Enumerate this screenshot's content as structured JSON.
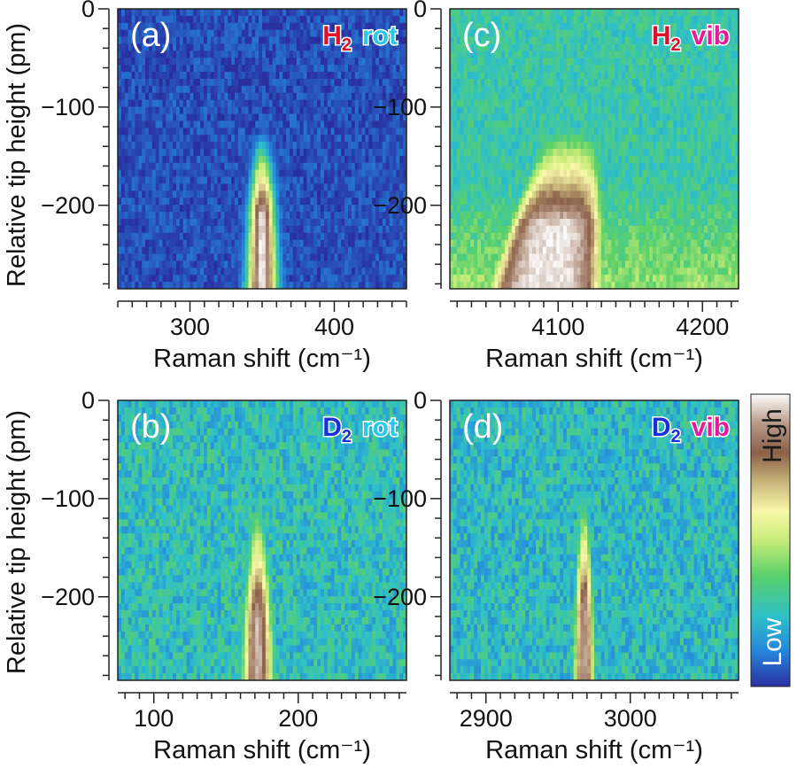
{
  "figure": {
    "shared_ylabel": "Relative tip height (pm)",
    "shared_xlabel": "Raman shift (cm⁻¹)"
  },
  "colors": {
    "species_H": "#e0102a",
    "species_D": "#1a2fd8",
    "label_rot": "#28c8e8",
    "label_vib": "#e8189a",
    "colormap": [
      "#2a2fa0",
      "#2585dc",
      "#2fc0c8",
      "#5ad06a",
      "#c8ec78",
      "#f8f8a8",
      "#c8b47a",
      "#8a6048",
      "#b89a88",
      "#ffffff"
    ]
  },
  "colorbar": {
    "high_label": "High",
    "low_label": "Low"
  },
  "chart_data": [
    {
      "type": "heatmap",
      "id": "a",
      "panel_label": "(a)",
      "species_base": "H",
      "species_sub": "2",
      "mode": "rot",
      "xlabel": "Raman shift (cm⁻¹)",
      "ylabel": "Relative tip height (pm)",
      "xlim": [
        250,
        450
      ],
      "ylim": [
        -285,
        0
      ],
      "xticks": [
        300,
        400
      ],
      "yticks": [
        0,
        -100,
        -200
      ],
      "feature": {
        "peak_center": 350,
        "apex_height": -120,
        "width_at_bottom": 20,
        "width_at_apex": 12,
        "baseline_level": 0.04,
        "noise": 0.05,
        "brightest_at": -280,
        "peak_max": 0.98,
        "fade_length": 90,
        "horizontal_band": false
      }
    },
    {
      "type": "heatmap",
      "id": "c",
      "panel_label": "(c)",
      "species_base": "H",
      "species_sub": "2",
      "mode": "vib",
      "xlabel": "Raman shift (cm⁻¹)",
      "ylabel": "",
      "xlim": [
        4025,
        4225
      ],
      "ylim": [
        -285,
        0
      ],
      "xticks": [
        4100,
        4200
      ],
      "yticks": [
        0,
        -100,
        -200
      ],
      "feature": {
        "peak_center": 4100,
        "apex_height": -90,
        "width_at_bottom": 55,
        "width_at_apex": 8,
        "baseline_level": 0.26,
        "noise": 0.06,
        "brightest_at": -280,
        "peak_max": 0.97,
        "fade_length": 130,
        "horizontal_band": true,
        "asymmetric_edge": 4135
      }
    },
    {
      "type": "heatmap",
      "id": "b",
      "panel_label": "(b)",
      "species_base": "D",
      "species_sub": "2",
      "mode": "rot",
      "xlabel": "Raman shift (cm⁻¹)",
      "ylabel": "Relative tip height (pm)",
      "xlim": [
        75,
        275
      ],
      "ylim": [
        -285,
        0
      ],
      "xticks": [
        100,
        200
      ],
      "yticks": [
        0,
        -100,
        -200
      ],
      "feature": {
        "peak_center": 172,
        "apex_height": -70,
        "width_at_bottom": 22,
        "width_at_apex": 10,
        "baseline_level": 0.23,
        "noise": 0.09,
        "brightest_at": -280,
        "peak_max": 0.93,
        "fade_length": 150,
        "horizontal_band": false
      }
    },
    {
      "type": "heatmap",
      "id": "d",
      "panel_label": "(d)",
      "species_base": "D",
      "species_sub": "2",
      "mode": "vib",
      "xlabel": "Raman shift (cm⁻¹)",
      "ylabel": "",
      "xlim": [
        2875,
        3075
      ],
      "ylim": [
        -285,
        0
      ],
      "xticks": [
        2900,
        3000
      ],
      "yticks": [
        0,
        -100,
        -200
      ],
      "feature": {
        "peak_center": 2968,
        "apex_height": -60,
        "width_at_bottom": 14,
        "width_at_apex": 8,
        "baseline_level": 0.22,
        "noise": 0.09,
        "brightest_at": -280,
        "peak_max": 0.9,
        "fade_length": 150,
        "horizontal_band": false
      }
    }
  ]
}
